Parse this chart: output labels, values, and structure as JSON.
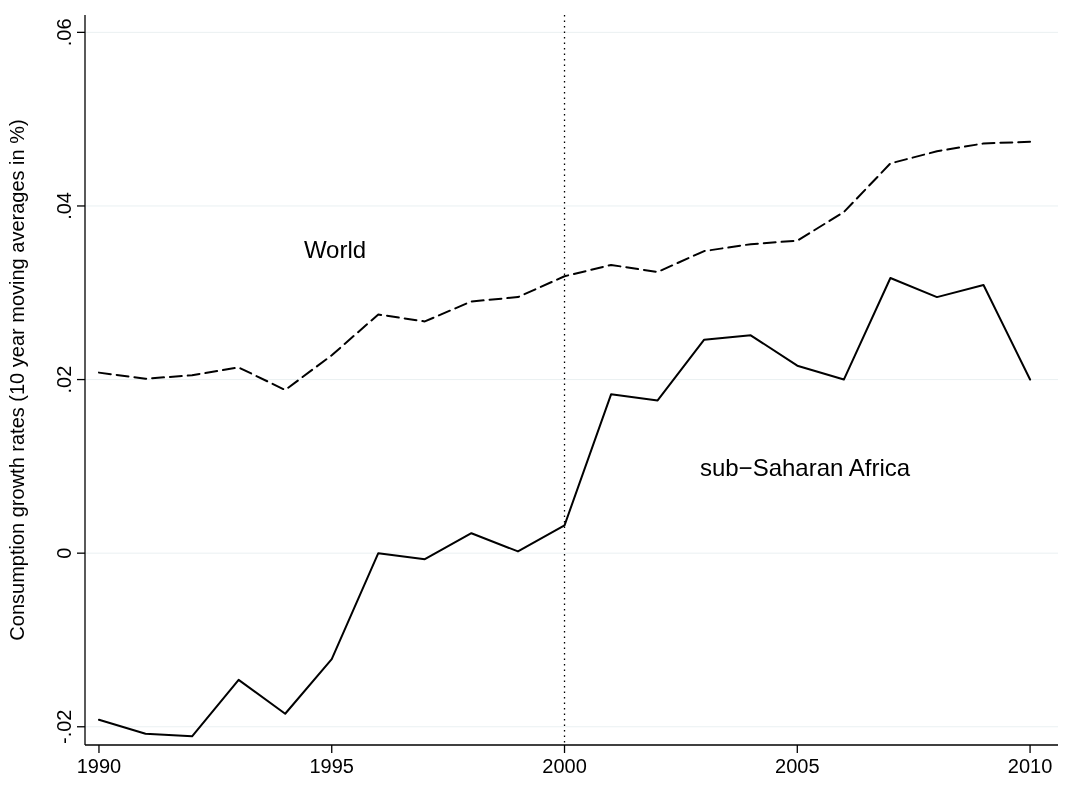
{
  "chart_data": {
    "type": "line",
    "ylabel": "Consumption growth rates (10 year moving averages in %)",
    "x": [
      1990,
      1991,
      1992,
      1993,
      1994,
      1995,
      1996,
      1997,
      1998,
      1999,
      2000,
      2001,
      2002,
      2003,
      2004,
      2005,
      2006,
      2007,
      2008,
      2009,
      2010
    ],
    "series": [
      {
        "name": "World",
        "color": "#000000",
        "line_style": "dashed",
        "values": [
          0.0208,
          0.0201,
          0.0205,
          0.0214,
          0.0188,
          0.0228,
          0.0275,
          0.0267,
          0.029,
          0.0295,
          0.0319,
          0.0332,
          0.0324,
          0.0348,
          0.0356,
          0.036,
          0.0393,
          0.0449,
          0.0463,
          0.0472,
          0.0474
        ]
      },
      {
        "name": "sub−Saharan Africa",
        "color": "#000000",
        "line_style": "solid",
        "values": [
          -0.0192,
          -0.0208,
          -0.0211,
          -0.0146,
          -0.0185,
          -0.0122,
          0.0,
          -0.0007,
          0.0023,
          0.0002,
          0.0032,
          0.0183,
          0.0176,
          0.0246,
          0.0251,
          0.0216,
          0.02,
          0.0317,
          0.0295,
          0.0309,
          0.02
        ]
      }
    ],
    "xlim": [
      1989.7,
      2010.6
    ],
    "xticks": [
      1990,
      1995,
      2000,
      2005,
      2010
    ],
    "ylim": [
      -0.0221,
      0.062
    ],
    "yticks": [
      {
        "value": -0.02,
        "label": "-.02"
      },
      0,
      {
        "value": 0.02,
        "label": ".02"
      },
      {
        "value": 0.04,
        "label": ".04"
      },
      {
        "value": 0.06,
        "label": ".06"
      }
    ],
    "grid": "y",
    "marker": "none",
    "ref_lines": [
      {
        "axis": "x",
        "value": 2000,
        "line_style": "dotted",
        "color": "#000000"
      }
    ]
  }
}
